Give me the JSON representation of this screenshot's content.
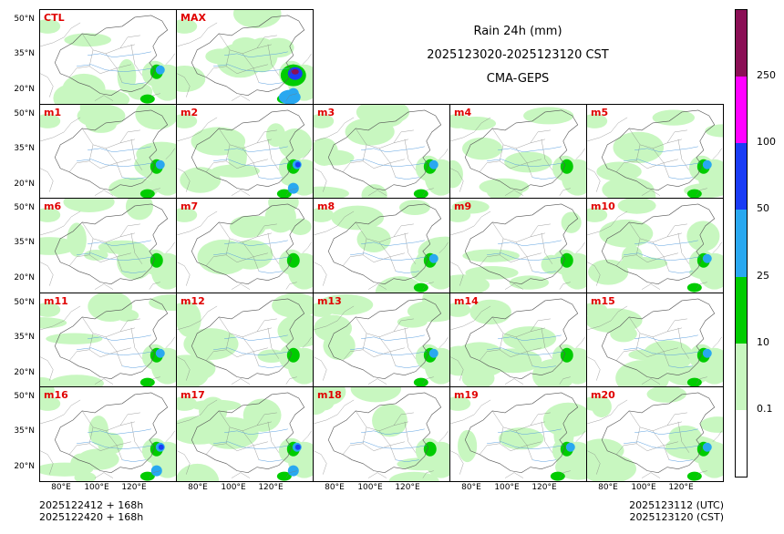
{
  "title": {
    "line1": "Rain 24h (mm)",
    "line2": "2025123020-2025123120 CST",
    "line3": "CMA-GEPS"
  },
  "panels": [
    {
      "label": "CTL",
      "intensity": 2
    },
    {
      "label": "MAX",
      "intensity": 4
    },
    {
      "label": "m1",
      "intensity": 2
    },
    {
      "label": "m2",
      "intensity": 3
    },
    {
      "label": "m3",
      "intensity": 2
    },
    {
      "label": "m4",
      "intensity": 1
    },
    {
      "label": "m5",
      "intensity": 2
    },
    {
      "label": "m6",
      "intensity": 1
    },
    {
      "label": "m7",
      "intensity": 1
    },
    {
      "label": "m8",
      "intensity": 2
    },
    {
      "label": "m9",
      "intensity": 1
    },
    {
      "label": "m10",
      "intensity": 2
    },
    {
      "label": "m11",
      "intensity": 2
    },
    {
      "label": "m12",
      "intensity": 1
    },
    {
      "label": "m13",
      "intensity": 2
    },
    {
      "label": "m14",
      "intensity": 1
    },
    {
      "label": "m15",
      "intensity": 2
    },
    {
      "label": "m16",
      "intensity": 3
    },
    {
      "label": "m17",
      "intensity": 3
    },
    {
      "label": "m18",
      "intensity": 1
    },
    {
      "label": "m19",
      "intensity": 2
    },
    {
      "label": "m20",
      "intensity": 2
    }
  ],
  "axes": {
    "lat_ticks": [
      "50°N",
      "35°N",
      "20°N"
    ],
    "lon_ticks": [
      "80°E",
      "100°E",
      "120°E"
    ]
  },
  "colorbar": {
    "levels": [
      "0.1",
      "10",
      "25",
      "50",
      "100",
      "250"
    ],
    "colors": [
      "#ffffff",
      "#c8f7c0",
      "#00cc00",
      "#29a8f0",
      "#1a3cf5",
      "#ff00ff",
      "#8b0f55"
    ]
  },
  "footer": {
    "left_line1": "2025122412 + 168h",
    "left_line2": "2025122420 + 168h",
    "right_line1": "2025123112 (UTC)",
    "right_line2": "2025123120 (CST)"
  }
}
